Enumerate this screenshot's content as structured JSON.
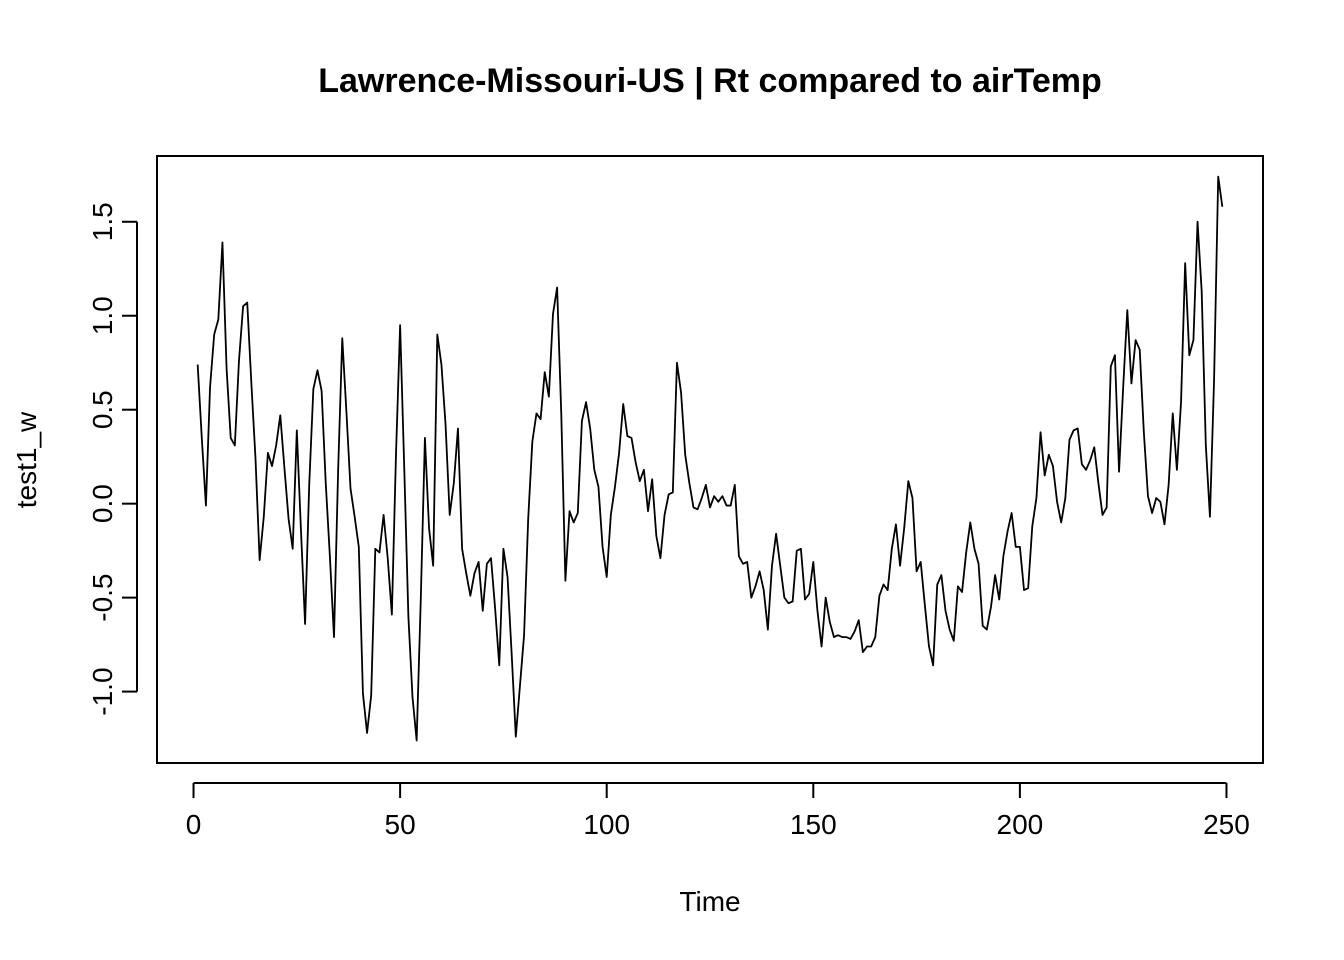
{
  "chart_data": {
    "type": "line",
    "title": "Lawrence-Missouri-US | Rt compared to airTemp",
    "xlabel": "Time",
    "ylabel": "test1_w",
    "xlim": [
      -8.84,
      258.84
    ],
    "ylim": [
      -1.38,
      1.85
    ],
    "x_ticks": [
      0,
      50,
      100,
      150,
      200,
      250
    ],
    "x_tick_labels": [
      "0",
      "50",
      "100",
      "150",
      "200",
      "250"
    ],
    "y_ticks": [
      -1.0,
      -0.5,
      0.0,
      0.5,
      1.0,
      1.5
    ],
    "y_tick_labels": [
      "-1.0",
      "-0.5",
      "0.0",
      "0.5",
      "1.0",
      "1.5"
    ],
    "grid": false,
    "line_color": "#000000",
    "series": [
      {
        "x_start": 1,
        "values": [
          0.74,
          0.35,
          -0.01,
          0.62,
          0.9,
          0.98,
          1.39,
          0.72,
          0.35,
          0.31,
          0.76,
          1.05,
          1.07,
          0.64,
          0.24,
          -0.3,
          -0.07,
          0.27,
          0.2,
          0.31,
          0.47,
          0.19,
          -0.08,
          -0.24,
          0.39,
          -0.14,
          -0.64,
          0.1,
          0.61,
          0.71,
          0.6,
          0.11,
          -0.28,
          -0.71,
          0.18,
          0.88,
          0.49,
          0.08,
          -0.07,
          -0.23,
          -1.01,
          -1.22,
          -1.02,
          -0.24,
          -0.26,
          -0.06,
          -0.29,
          -0.59,
          0.26,
          0.95,
          0.19,
          -0.6,
          -1.03,
          -1.26,
          -0.51,
          0.35,
          -0.13,
          -0.33,
          0.9,
          0.74,
          0.42,
          -0.06,
          0.11,
          0.4,
          -0.24,
          -0.37,
          -0.49,
          -0.37,
          -0.31,
          -0.57,
          -0.32,
          -0.29,
          -0.56,
          -0.86,
          -0.24,
          -0.39,
          -0.8,
          -1.24,
          -0.97,
          -0.7,
          -0.08,
          0.33,
          0.48,
          0.45,
          0.7,
          0.57,
          1.01,
          1.15,
          0.48,
          -0.41,
          -0.04,
          -0.1,
          -0.05,
          0.44,
          0.54,
          0.4,
          0.18,
          0.09,
          -0.23,
          -0.39,
          -0.06,
          0.09,
          0.27,
          0.53,
          0.36,
          0.35,
          0.22,
          0.12,
          0.18,
          -0.04,
          0.13,
          -0.17,
          -0.29,
          -0.06,
          0.05,
          0.06,
          0.75,
          0.59,
          0.26,
          0.11,
          -0.02,
          -0.03,
          0.03,
          0.1,
          -0.02,
          0.04,
          0.01,
          0.04,
          -0.01,
          -0.01,
          0.1,
          -0.28,
          -0.32,
          -0.31,
          -0.5,
          -0.44,
          -0.36,
          -0.46,
          -0.67,
          -0.33,
          -0.16,
          -0.33,
          -0.5,
          -0.53,
          -0.52,
          -0.25,
          -0.24,
          -0.51,
          -0.48,
          -0.31,
          -0.57,
          -0.76,
          -0.5,
          -0.63,
          -0.71,
          -0.7,
          -0.71,
          -0.71,
          -0.72,
          -0.68,
          -0.62,
          -0.79,
          -0.76,
          -0.76,
          -0.71,
          -0.49,
          -0.43,
          -0.46,
          -0.24,
          -0.11,
          -0.33,
          -0.13,
          0.12,
          0.03,
          -0.36,
          -0.31,
          -0.54,
          -0.76,
          -0.86,
          -0.43,
          -0.38,
          -0.57,
          -0.67,
          -0.73,
          -0.44,
          -0.47,
          -0.26,
          -0.1,
          -0.24,
          -0.32,
          -0.65,
          -0.67,
          -0.55,
          -0.38,
          -0.51,
          -0.28,
          -0.15,
          -0.05,
          -0.23,
          -0.23,
          -0.46,
          -0.45,
          -0.12,
          0.03,
          0.38,
          0.15,
          0.26,
          0.2,
          0.01,
          -0.1,
          0.03,
          0.34,
          0.39,
          0.4,
          0.21,
          0.18,
          0.23,
          0.3,
          0.11,
          -0.06,
          -0.02,
          0.73,
          0.79,
          0.17,
          0.62,
          1.03,
          0.64,
          0.87,
          0.82,
          0.38,
          0.04,
          -0.05,
          0.03,
          0.01,
          -0.11,
          0.1,
          0.48,
          0.18,
          0.54,
          1.28,
          0.79,
          0.87,
          1.5,
          1.13,
          0.31,
          -0.07,
          0.66,
          1.74,
          1.58
        ]
      }
    ]
  }
}
